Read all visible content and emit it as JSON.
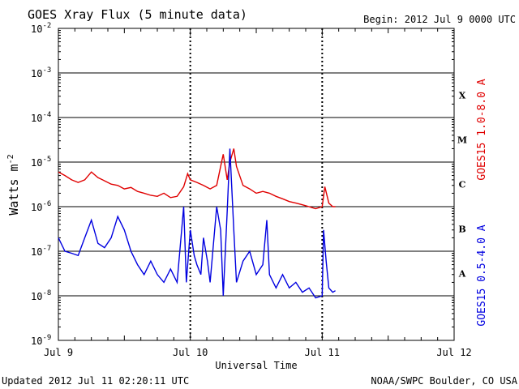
{
  "title": "GOES Xray Flux (5 minute data)",
  "begin_label": "Begin:  2012 Jul 9 0000 UTC",
  "footer_left": "Updated 2012 Jul 11 02:20:11 UTC",
  "footer_right": "NOAA/SWPC Boulder, CO USA",
  "colors": {
    "long": "#e00000",
    "short": "#0000e0",
    "axis": "#000000"
  },
  "chart_data": {
    "type": "line",
    "title": "GOES Xray Flux (5 minute data)",
    "xlabel": "Universal Time",
    "ylabel": "Watts m",
    "ylabel_sup": "-2",
    "yscale": "log",
    "ylim": [
      1e-09,
      0.01
    ],
    "xlim_days": [
      0,
      3
    ],
    "x_ticks": [
      "Jul 9",
      "Jul 10",
      "Jul 11",
      "Jul 12"
    ],
    "y_ticks": [
      {
        "base": "10",
        "exp": "-9"
      },
      {
        "base": "10",
        "exp": "-8"
      },
      {
        "base": "10",
        "exp": "-7"
      },
      {
        "base": "10",
        "exp": "-6"
      },
      {
        "base": "10",
        "exp": "-5"
      },
      {
        "base": "10",
        "exp": "-4"
      },
      {
        "base": "10",
        "exp": "-3"
      },
      {
        "base": "10",
        "exp": "-2"
      }
    ],
    "flare_classes": [
      {
        "label": "A",
        "value": 1e-08
      },
      {
        "label": "B",
        "value": 1e-07
      },
      {
        "label": "C",
        "value": 1e-06
      },
      {
        "label": "M",
        "value": 1e-05
      },
      {
        "label": "X",
        "value": 0.0001
      }
    ],
    "series": [
      {
        "name": "GOES15 1.0-8.0 A",
        "color": "#e00000",
        "x": [
          0.0,
          0.05,
          0.1,
          0.15,
          0.2,
          0.25,
          0.3,
          0.35,
          0.4,
          0.45,
          0.5,
          0.55,
          0.6,
          0.65,
          0.7,
          0.75,
          0.8,
          0.85,
          0.9,
          0.95,
          0.98,
          1.0,
          1.05,
          1.1,
          1.15,
          1.2,
          1.23,
          1.25,
          1.28,
          1.3,
          1.33,
          1.35,
          1.4,
          1.45,
          1.5,
          1.55,
          1.6,
          1.65,
          1.7,
          1.75,
          1.8,
          1.85,
          1.9,
          1.95,
          2.0,
          2.02,
          2.05,
          2.08,
          2.1
        ],
        "y": [
          6e-06,
          5e-06,
          4e-06,
          3.5e-06,
          4e-06,
          6e-06,
          4.5e-06,
          3.8e-06,
          3.2e-06,
          3e-06,
          2.5e-06,
          2.7e-06,
          2.2e-06,
          2e-06,
          1.8e-06,
          1.7e-06,
          2e-06,
          1.6e-06,
          1.7e-06,
          2.8e-06,
          5.5e-06,
          4e-06,
          3.5e-06,
          3e-06,
          2.5e-06,
          3e-06,
          8e-06,
          1.5e-05,
          4e-06,
          1e-05,
          2e-05,
          8e-06,
          3e-06,
          2.5e-06,
          2e-06,
          2.2e-06,
          2e-06,
          1.7e-06,
          1.5e-06,
          1.3e-06,
          1.2e-06,
          1.1e-06,
          1e-06,
          9e-07,
          1e-06,
          2.8e-06,
          1.2e-06,
          1e-06,
          1e-06
        ]
      },
      {
        "name": "GOES15 0.5-4.0 A",
        "color": "#0000e0",
        "x": [
          0.0,
          0.05,
          0.1,
          0.15,
          0.2,
          0.25,
          0.3,
          0.35,
          0.4,
          0.45,
          0.5,
          0.55,
          0.6,
          0.65,
          0.7,
          0.75,
          0.8,
          0.85,
          0.9,
          0.95,
          0.97,
          1.0,
          1.03,
          1.05,
          1.08,
          1.1,
          1.13,
          1.15,
          1.2,
          1.23,
          1.25,
          1.28,
          1.3,
          1.33,
          1.35,
          1.4,
          1.45,
          1.5,
          1.55,
          1.58,
          1.6,
          1.65,
          1.7,
          1.75,
          1.8,
          1.85,
          1.9,
          1.95,
          2.0,
          2.01,
          2.03,
          2.05,
          2.08,
          2.1
        ],
        "y": [
          2e-07,
          1e-07,
          9e-08,
          8e-08,
          2e-07,
          5e-07,
          1.5e-07,
          1.2e-07,
          2e-07,
          6e-07,
          3e-07,
          1e-07,
          5e-08,
          3e-08,
          6e-08,
          3e-08,
          2e-08,
          4e-08,
          2e-08,
          1e-06,
          2e-08,
          3e-07,
          8e-08,
          5e-08,
          3e-08,
          2e-07,
          6e-08,
          2e-08,
          1e-06,
          3e-07,
          1e-08,
          8e-07,
          2e-05,
          3e-07,
          2e-08,
          6e-08,
          1e-07,
          3e-08,
          5e-08,
          5e-07,
          3e-08,
          1.5e-08,
          3e-08,
          1.5e-08,
          2e-08,
          1.2e-08,
          1.5e-08,
          9e-09,
          1e-08,
          3e-07,
          6e-08,
          1.5e-08,
          1.2e-08,
          1.3e-08
        ]
      }
    ]
  }
}
